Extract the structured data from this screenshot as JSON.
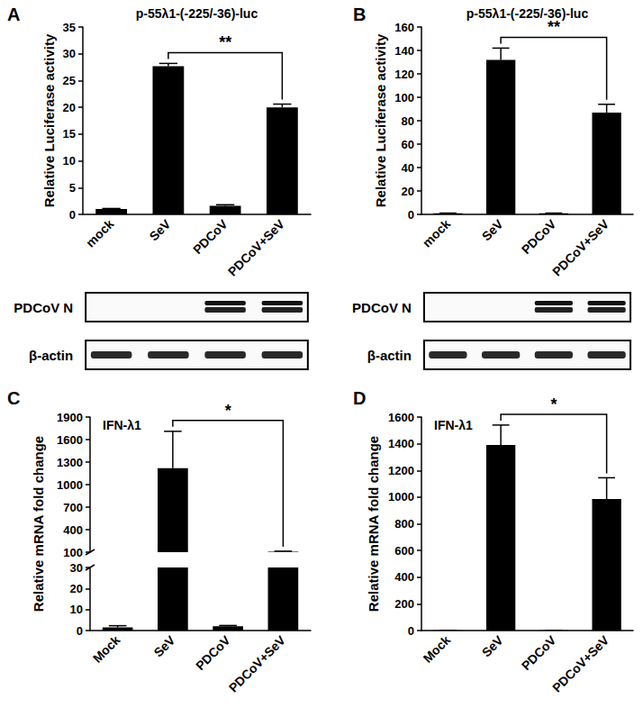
{
  "chart_data": [
    {
      "type": "bar",
      "panel_label": "A",
      "title": "p-55λ1-(-225/-36)-luc",
      "y_label": "Relative Luciferase activity",
      "categories": [
        "mock",
        "SeV",
        "PDCoV",
        "PDCoV+SeV"
      ],
      "values": [
        1,
        27.7,
        1.6,
        20.0
      ],
      "errors": [
        0.1,
        0.5,
        0.2,
        0.6
      ],
      "color": "#000000",
      "ylim": [
        0,
        35
      ],
      "yticks": [
        0,
        5,
        10,
        15,
        20,
        25,
        30,
        35
      ],
      "grid": false,
      "annotations": [
        {
          "text": "**",
          "from": 1,
          "to": 3
        }
      ]
    },
    {
      "type": "bar",
      "panel_label": "B",
      "title": "p-55λ1-(-225/-36)-luc",
      "y_label": "Relative Luciferase activity",
      "categories": [
        "mock",
        "SeV",
        "PDCoV",
        "PDCoV+SeV"
      ],
      "values": [
        1,
        132,
        1,
        87
      ],
      "errors": [
        0.1,
        10,
        0.1,
        7
      ],
      "color": "#000000",
      "ylim": [
        0,
        160
      ],
      "yticks": [
        0,
        20,
        40,
        60,
        80,
        100,
        120,
        140,
        160
      ],
      "grid": false,
      "annotations": [
        {
          "text": "**",
          "from": 1,
          "to": 3
        }
      ]
    },
    {
      "type": "bar",
      "panel_label": "C",
      "title": "IFN-λ1",
      "y_label": "Relative mRNA fold change",
      "categories": [
        "Mock",
        "SeV",
        "PDCoV",
        "PDCoV+SeV"
      ],
      "values": [
        1.5,
        1220,
        2,
        105
      ],
      "errors": [
        0.8,
        490,
        0.4,
        8
      ],
      "color": "#000000",
      "y_segments": [
        {
          "ylim": [
            0,
            30
          ],
          "yticks": [
            0,
            10,
            20,
            30
          ]
        },
        {
          "ylim": [
            100,
            1900
          ],
          "yticks": [
            100,
            400,
            700,
            1000,
            1300,
            1600,
            1900
          ]
        }
      ],
      "grid": false,
      "annotations": [
        {
          "text": "*",
          "from": 1,
          "to": 3
        }
      ]
    },
    {
      "type": "bar",
      "panel_label": "D",
      "title": "IFN-λ1",
      "y_label": "Relative mRNA fold change",
      "categories": [
        "Mock",
        "SeV",
        "PDCoV",
        "PDCoV+SeV"
      ],
      "values": [
        1,
        1390,
        1,
        985
      ],
      "errors": [
        0.5,
        150,
        0.3,
        160
      ],
      "color": "#000000",
      "ylim": [
        0,
        1600
      ],
      "yticks": [
        0,
        200,
        400,
        600,
        800,
        1000,
        1200,
        1400,
        1600
      ],
      "grid": false,
      "annotations": [
        {
          "text": "*",
          "from": 1,
          "to": 3
        }
      ]
    }
  ],
  "blots": [
    {
      "panel": "A",
      "rows": [
        {
          "label": "PDCoV N",
          "bands": [
            false,
            false,
            true,
            true
          ]
        },
        {
          "label": "β-actin",
          "bands": [
            true,
            true,
            true,
            true
          ]
        }
      ]
    },
    {
      "panel": "B",
      "rows": [
        {
          "label": "PDCoV N",
          "bands": [
            false,
            false,
            true,
            true
          ]
        },
        {
          "label": "β-actin",
          "bands": [
            true,
            true,
            true,
            true
          ]
        }
      ]
    }
  ]
}
